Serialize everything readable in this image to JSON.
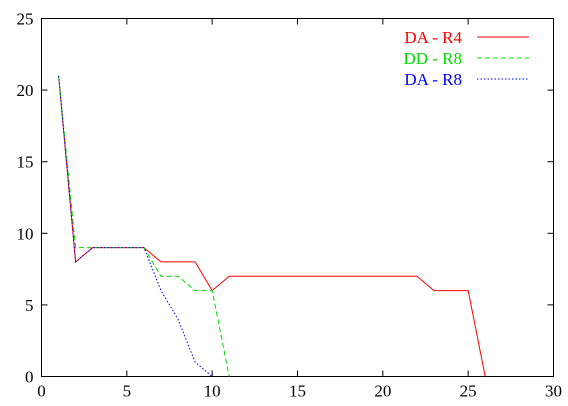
{
  "chart_data": {
    "type": "line",
    "title": "",
    "xlabel": "",
    "ylabel": "",
    "xlim": [
      0,
      30
    ],
    "ylim": [
      0,
      25
    ],
    "x_ticks": [
      0,
      5,
      10,
      15,
      20,
      25,
      30
    ],
    "y_ticks": [
      0,
      5,
      10,
      15,
      20,
      25
    ],
    "grid": false,
    "legend_position": "top-right",
    "series": [
      {
        "name": "DA - R4",
        "color": "#ff0000",
        "dash": "solid",
        "points": [
          [
            1,
            21
          ],
          [
            2,
            8
          ],
          [
            3,
            9
          ],
          [
            4,
            9
          ],
          [
            5,
            9
          ],
          [
            6,
            9
          ],
          [
            7,
            8
          ],
          [
            8,
            8
          ],
          [
            9,
            8
          ],
          [
            10,
            6
          ],
          [
            11,
            7
          ],
          [
            12,
            7
          ],
          [
            13,
            7
          ],
          [
            14,
            7
          ],
          [
            15,
            7
          ],
          [
            16,
            7
          ],
          [
            17,
            7
          ],
          [
            18,
            7
          ],
          [
            19,
            7
          ],
          [
            20,
            7
          ],
          [
            21,
            7
          ],
          [
            22,
            7
          ],
          [
            23,
            6
          ],
          [
            24,
            6
          ],
          [
            25,
            6
          ],
          [
            26,
            0
          ]
        ]
      },
      {
        "name": "DD - R8",
        "color": "#00dd00",
        "dash": "dashed",
        "points": [
          [
            1,
            21
          ],
          [
            2,
            9
          ],
          [
            3,
            9
          ],
          [
            4,
            9
          ],
          [
            5,
            9
          ],
          [
            6,
            9
          ],
          [
            7,
            7
          ],
          [
            8,
            7
          ],
          [
            9,
            6
          ],
          [
            10,
            6
          ],
          [
            11,
            0
          ]
        ]
      },
      {
        "name": "DA - R8",
        "color": "#0000ff",
        "dash": "dotted",
        "points": [
          [
            1,
            21
          ],
          [
            2,
            8
          ],
          [
            3,
            9
          ],
          [
            4,
            9
          ],
          [
            5,
            9
          ],
          [
            6,
            9
          ],
          [
            7,
            6
          ],
          [
            8,
            4
          ],
          [
            9,
            1
          ],
          [
            10,
            0
          ]
        ]
      }
    ]
  }
}
